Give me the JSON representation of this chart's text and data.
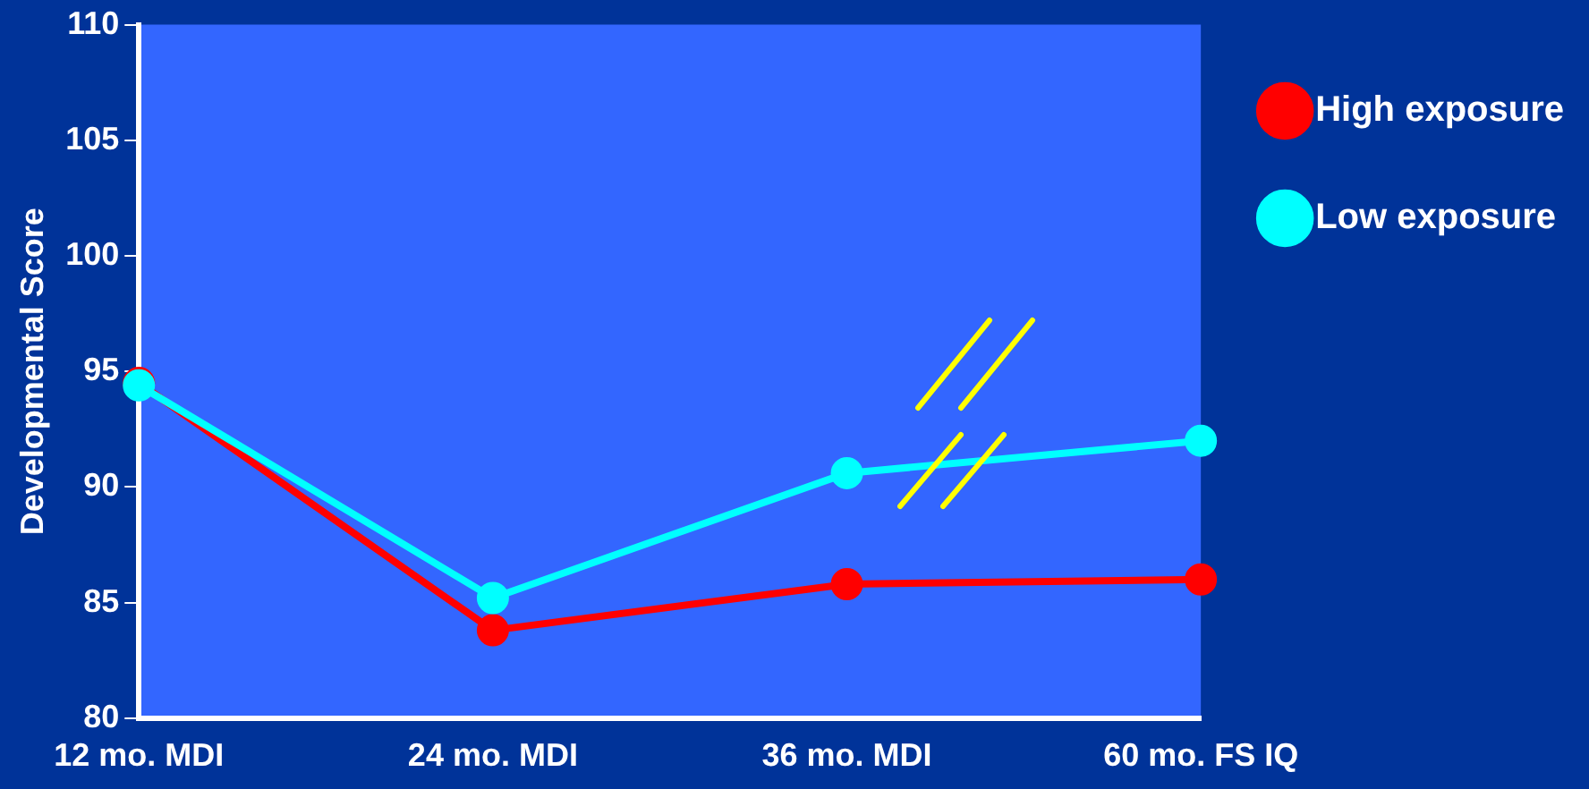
{
  "chart_data": {
    "type": "line",
    "ylabel": "Developmental Score",
    "categories": [
      "12 mo. MDI",
      "24 mo. MDI",
      "36 mo. MDI",
      "60 mo. FS IQ"
    ],
    "series": [
      {
        "name": "High exposure",
        "color": "#ff0000",
        "values": [
          94.5,
          83.8,
          85.8,
          86.0
        ]
      },
      {
        "name": "Low exposure",
        "color": "#00ffff",
        "values": [
          94.4,
          85.2,
          90.6,
          92.0
        ]
      }
    ],
    "ylim": [
      80,
      110
    ],
    "yticks": [
      80,
      85,
      90,
      95,
      100,
      105,
      110
    ],
    "grid": false,
    "legend": "right",
    "marker": "circle",
    "line_style": "solid"
  }
}
